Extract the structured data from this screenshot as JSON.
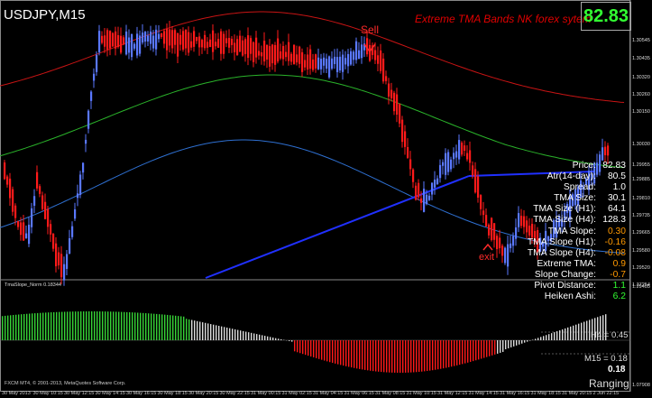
{
  "chart": {
    "symbol_title": "USDJPY,M15",
    "banner_title": "Extreme TMA Bands NK forex sytem",
    "current_price": "82.83",
    "sell_label": "Sell",
    "exit_label": "exit"
  },
  "stats": [
    {
      "label": "Price:",
      "value": "82.83",
      "color": "#ffffff"
    },
    {
      "label": "Atr(14-day):",
      "value": "80.5",
      "color": "#ffffff"
    },
    {
      "label": "Spread:",
      "value": "1.0",
      "color": "#ffffff"
    },
    {
      "label": "TMA Size:",
      "value": "30.1",
      "color": "#ffffff"
    },
    {
      "label": "TMA Size (H1):",
      "value": "64.1",
      "color": "#ffffff"
    },
    {
      "label": "TMA Size (H4):",
      "value": "128.3",
      "color": "#ffffff"
    },
    {
      "label": "TMA Slope:",
      "value": "0.30",
      "color": "#ff9900"
    },
    {
      "label": "TMA Slope (H1):",
      "value": "-0.16",
      "color": "#ff9900"
    },
    {
      "label": "TMA Slope (H4):",
      "value": "-0.08",
      "color": "#ff9900"
    },
    {
      "label": "Extreme TMA:",
      "value": "0.9",
      "color": "#ff9900"
    },
    {
      "label": "Slope Change:",
      "value": "-0.7",
      "color": "#ff9900"
    },
    {
      "label": "Pivot Distance:",
      "value": "1.1",
      "color": "#32ff32"
    },
    {
      "label": "Heiken Ashi:",
      "value": "6.2",
      "color": "#32ff32"
    }
  ],
  "price_axis": [
    "1.30545",
    "1.30435",
    "1.30320",
    "1.30260",
    "1.30150",
    "1.30030",
    "1.29955",
    "1.29885",
    "1.29810",
    "1.29735",
    "1.29665",
    "1.29580",
    "1.29520",
    "1.29405",
    "1.37254",
    "1.07908"
  ],
  "time_axis": [
    "30 May 2013",
    "30 May 10:15",
    "30 May 12:15",
    "30 May 14:15",
    "30 May 16:15",
    "30 May 18:15",
    "30 May 20:15",
    "30 May 22:15",
    "31 May 00:15",
    "31 May 02:15",
    "31 May 04:15",
    "31 May 06:15",
    "31 May 08:15",
    "31 May 10:15",
    "31 May 12:15",
    "31 May 14:15",
    "31 May 16:15",
    "31 May 18:15",
    "31 May 20:15",
    "2 Jun 22:15"
  ],
  "indicator": {
    "name": "TmaSlope_Norm 0.18344",
    "copyright": "FXCM MT4, © 2001-2013, MetaQuotes Software Corp.",
    "h4_label": "H4 = 0.45",
    "m15_label": "M15 = 0.18",
    "current_value": "0.18",
    "state_label": "Ranging"
  },
  "colors": {
    "bull_candle": "#5a78ff",
    "bear_candle": "#ff1a1a",
    "upper_band": "#c81414",
    "middle_band": "#2ab22a",
    "lower_band": "#2e6fd0",
    "slope_positive": "#36d336",
    "slope_neutral": "#dddddd",
    "slope_negative": "#ff1a1a"
  }
}
